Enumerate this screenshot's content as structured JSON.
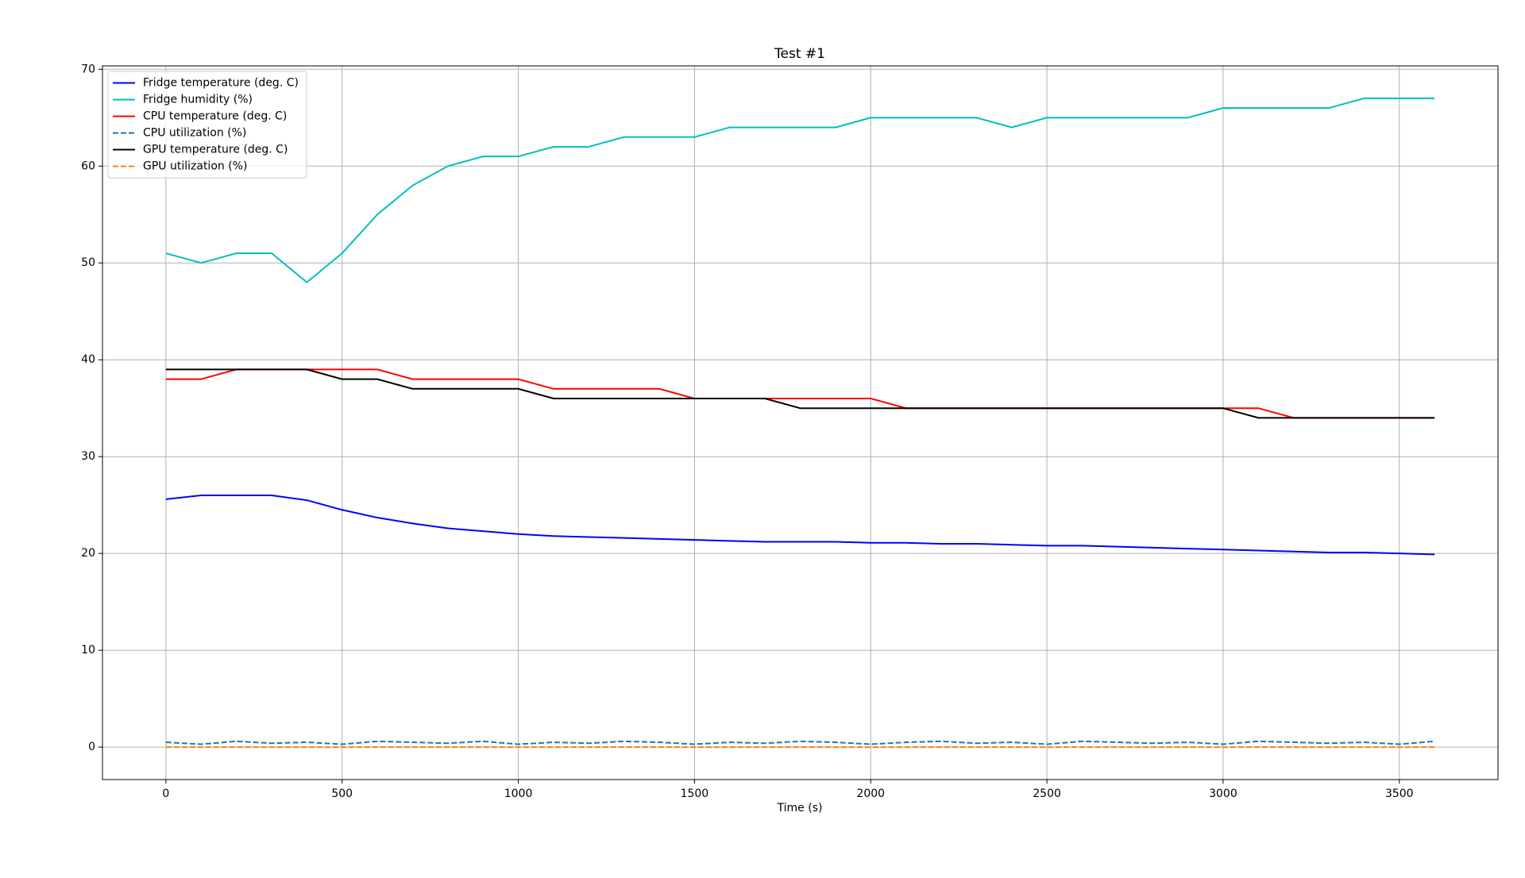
{
  "chart_data": {
    "type": "line",
    "title": "Test #1",
    "x_label": "Time (s)",
    "x": [
      0,
      100,
      200,
      300,
      400,
      500,
      600,
      700,
      800,
      900,
      1000,
      1100,
      1200,
      1300,
      1400,
      1500,
      1600,
      1700,
      1800,
      1900,
      2000,
      2100,
      2200,
      2300,
      2400,
      2500,
      2600,
      2700,
      2800,
      2900,
      3000,
      3100,
      3200,
      3300,
      3400,
      3500,
      3600
    ],
    "series": [
      {
        "name": "Fridge temperature (deg. C)",
        "color": "#0000ff",
        "linestyle": "solid",
        "values": [
          25.6,
          26,
          26,
          26,
          25.5,
          24.5,
          23.7,
          23.1,
          22.6,
          22.3,
          22.0,
          21.8,
          21.7,
          21.6,
          21.5,
          21.4,
          21.3,
          21.2,
          21.2,
          21.2,
          21.1,
          21.1,
          21.0,
          21.0,
          20.9,
          20.8,
          20.8,
          20.7,
          20.6,
          20.5,
          20.4,
          20.3,
          20.2,
          20.1,
          20.1,
          20.0,
          19.9
        ]
      },
      {
        "name": "Fridge humidity (%)",
        "color": "#00bfbf",
        "linestyle": "solid",
        "values": [
          51,
          50,
          51,
          51,
          48,
          51,
          55,
          58,
          60,
          61,
          61,
          62,
          62,
          63,
          63,
          63,
          64,
          64,
          64,
          64,
          65,
          65,
          65,
          65,
          64,
          65,
          65,
          65,
          65,
          65,
          66,
          66,
          66,
          66,
          67,
          67,
          67
        ]
      },
      {
        "name": "CPU temperature (deg. C)",
        "color": "#ff0000",
        "linestyle": "solid",
        "values": [
          38,
          38,
          39,
          39,
          39,
          39,
          39,
          38,
          38,
          38,
          38,
          37,
          37,
          37,
          37,
          36,
          36,
          36,
          36,
          36,
          36,
          35,
          35,
          35,
          35,
          35,
          35,
          35,
          35,
          35,
          35,
          35,
          34,
          34,
          34,
          34,
          34
        ]
      },
      {
        "name": "CPU utilization (%)",
        "color": "#1f77b4",
        "linestyle": "dashed",
        "values": [
          0.5,
          0.3,
          0.6,
          0.4,
          0.5,
          0.3,
          0.6,
          0.5,
          0.4,
          0.6,
          0.3,
          0.5,
          0.4,
          0.6,
          0.5,
          0.3,
          0.5,
          0.4,
          0.6,
          0.5,
          0.3,
          0.5,
          0.6,
          0.4,
          0.5,
          0.3,
          0.6,
          0.5,
          0.4,
          0.5,
          0.3,
          0.6,
          0.5,
          0.4,
          0.5,
          0.3,
          0.6
        ]
      },
      {
        "name": "GPU temperature (deg. C)",
        "color": "#000000",
        "linestyle": "solid",
        "values": [
          39,
          39,
          39,
          39,
          39,
          38,
          38,
          37,
          37,
          37,
          37,
          36,
          36,
          36,
          36,
          36,
          36,
          36,
          35,
          35,
          35,
          35,
          35,
          35,
          35,
          35,
          35,
          35,
          35,
          35,
          35,
          34,
          34,
          34,
          34,
          34,
          34
        ]
      },
      {
        "name": "GPU utilization (%)",
        "color": "#ff7f0e",
        "linestyle": "dashed",
        "values": [
          0,
          0,
          0,
          0,
          0,
          0,
          0,
          0,
          0,
          0,
          0,
          0,
          0,
          0,
          0,
          0,
          0,
          0,
          0,
          0,
          0,
          0,
          0,
          0,
          0,
          0,
          0,
          0,
          0,
          0,
          0,
          0,
          0,
          0,
          0,
          0,
          0
        ]
      }
    ],
    "xlim": [
      -180,
      3780
    ],
    "xticks": [
      0,
      500,
      1000,
      1500,
      2000,
      2500,
      3000,
      3500
    ],
    "ylim": [
      -3.35,
      70.35
    ],
    "yticks": [
      0,
      10,
      20,
      30,
      40,
      50,
      60,
      70
    ],
    "grid": true,
    "legend": "upper-left"
  }
}
